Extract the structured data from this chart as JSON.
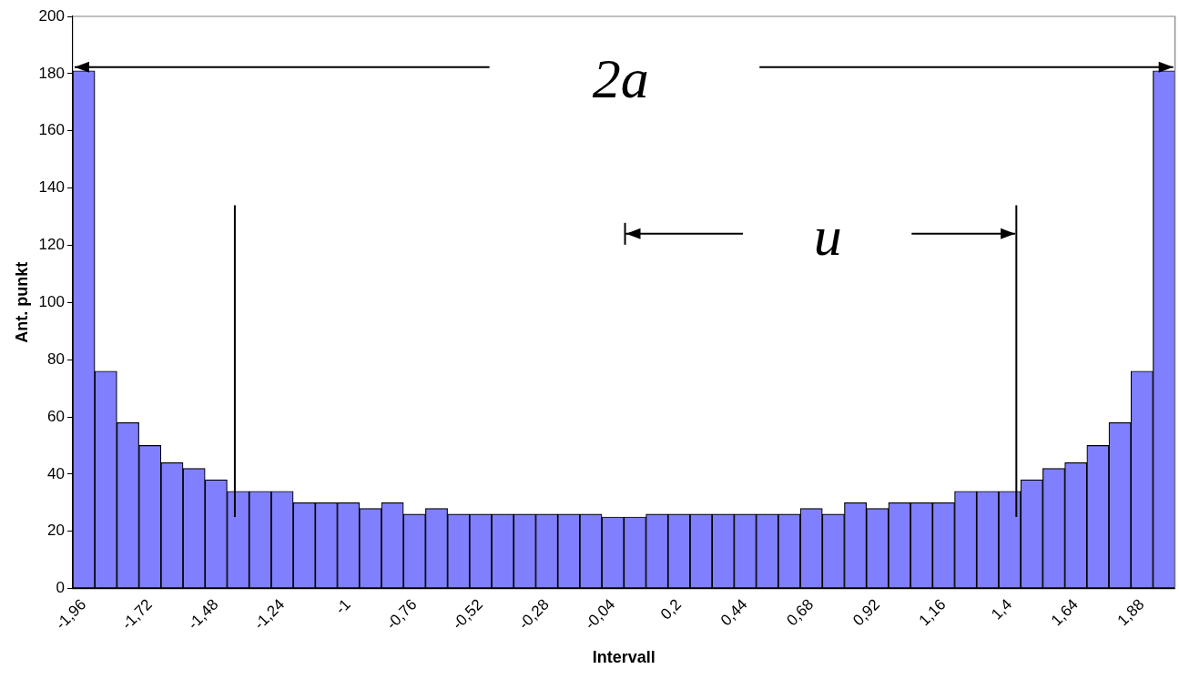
{
  "chart_data": {
    "type": "bar",
    "xlabel": "Intervall",
    "ylabel": "Ant. punkt",
    "categories": [
      "-1,96",
      null,
      null,
      "-1,72",
      null,
      null,
      "-1,48",
      null,
      null,
      "-1,24",
      null,
      null,
      "-1",
      null,
      null,
      "-0,76",
      null,
      null,
      "-0,52",
      null,
      null,
      "-0,28",
      null,
      null,
      "-0,04",
      null,
      null,
      "0,2",
      null,
      null,
      "0,44",
      null,
      null,
      "0,68",
      null,
      null,
      "0,92",
      null,
      null,
      "1,16",
      null,
      null,
      "1,4",
      null,
      null,
      "1,64",
      null,
      null,
      "1,88",
      null
    ],
    "values": [
      181,
      76,
      58,
      50,
      44,
      42,
      38,
      34,
      34,
      34,
      30,
      30,
      30,
      28,
      30,
      26,
      28,
      26,
      26,
      26,
      26,
      26,
      26,
      26,
      25,
      25,
      26,
      26,
      26,
      26,
      26,
      26,
      26,
      28,
      26,
      30,
      28,
      30,
      30,
      30,
      34,
      34,
      34,
      38,
      42,
      44,
      50,
      58,
      76,
      181
    ],
    "color": "#8080ff",
    "ylim": [
      0,
      200
    ],
    "yticks": [
      0,
      20,
      40,
      60,
      80,
      100,
      120,
      140,
      160,
      180,
      200
    ],
    "grid": false,
    "legend": false,
    "annotations": [
      "2a",
      "u"
    ]
  }
}
